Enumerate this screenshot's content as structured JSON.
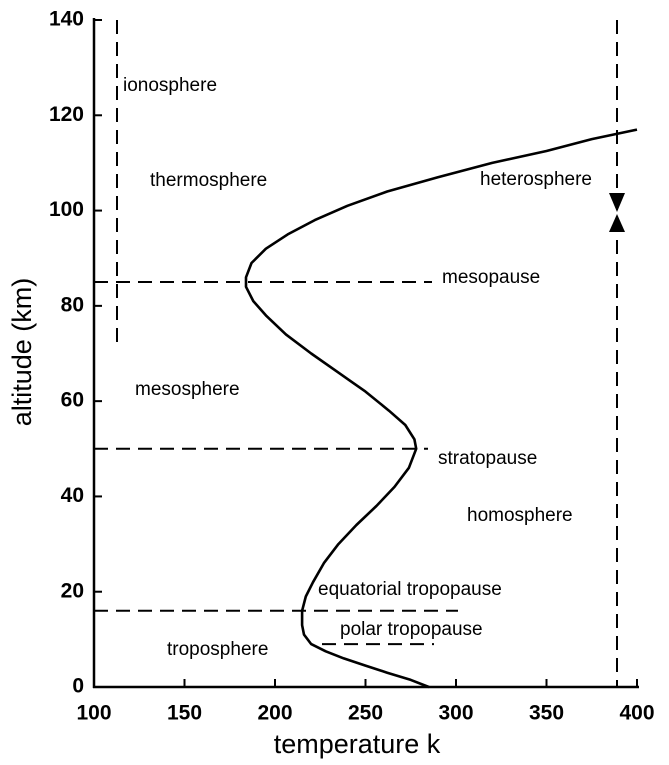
{
  "chart_data": {
    "type": "line",
    "xlabel": "temperature  k",
    "ylabel": "altitude (km)",
    "color": "#000000",
    "x": [
      285,
      275,
      262,
      250,
      238,
      228,
      220,
      216,
      215,
      215,
      217,
      221,
      227,
      235,
      245,
      256,
      266,
      274,
      278,
      277,
      272,
      263,
      250,
      235,
      220,
      206,
      195,
      188,
      184,
      184,
      187,
      195,
      207,
      222,
      240,
      262,
      290,
      320,
      350,
      375,
      400
    ],
    "values": [
      0,
      1.5,
      3,
      4.5,
      6,
      7.5,
      9,
      11,
      13,
      16,
      19,
      22,
      26,
      30,
      34,
      38,
      42,
      46,
      50,
      52,
      55,
      58,
      62,
      66,
      70,
      74,
      78,
      81,
      84,
      86,
      89,
      92,
      95,
      98,
      101,
      104,
      107,
      110,
      112.5,
      115,
      117
    ],
    "xlim": [
      100,
      400
    ],
    "ylim": [
      0,
      140
    ],
    "xticks": [
      100,
      150,
      200,
      250,
      300,
      350,
      400
    ],
    "yticks": [
      0,
      20,
      40,
      60,
      80,
      100,
      120,
      140
    ],
    "levels": [
      {
        "name": "mesopause",
        "altitude": 85
      },
      {
        "name": "stratopause",
        "altitude": 50
      },
      {
        "name": "equatorial tropopause",
        "altitude": 16
      },
      {
        "name": "polar tropopause",
        "altitude": 9
      }
    ],
    "annotations": [
      "ionosphere",
      "thermosphere",
      "heterosphere",
      "mesosphere",
      "homosphere",
      "troposphere"
    ]
  }
}
